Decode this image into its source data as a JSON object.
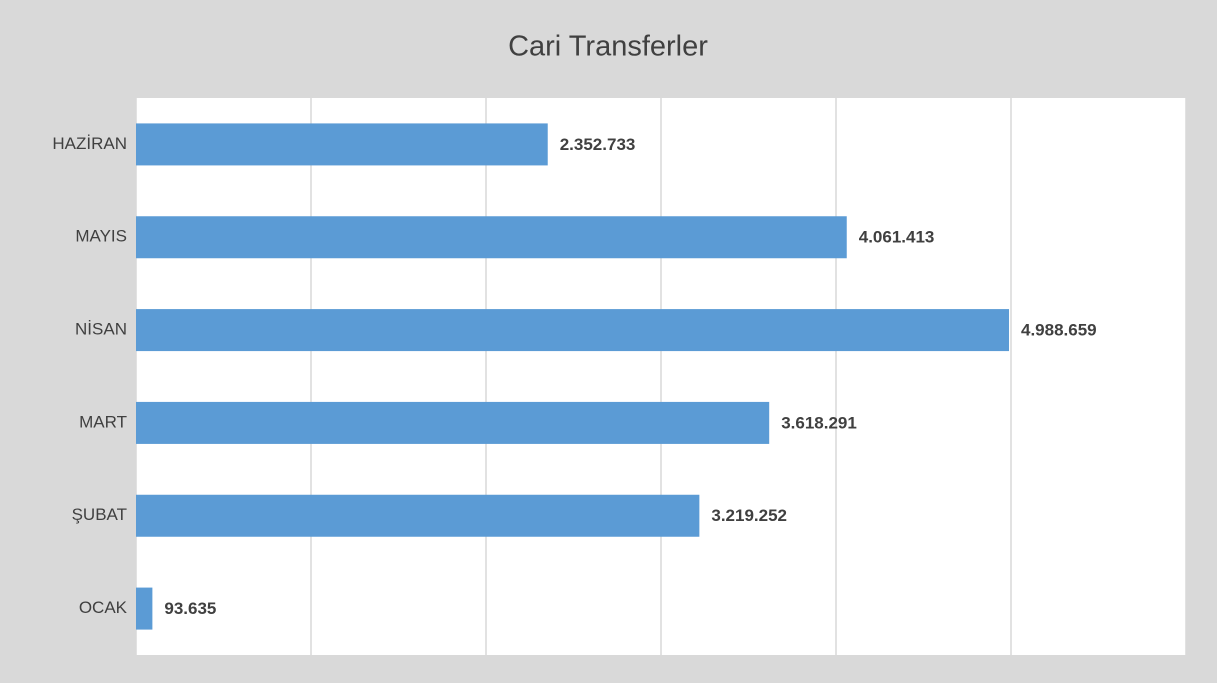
{
  "chart_data": {
    "type": "barh",
    "title": "Cari Transferler",
    "categories": [
      "HAZİRAN",
      "MAYIS",
      "NİSAN",
      "MART",
      "ŞUBAT",
      "OCAK"
    ],
    "values": [
      2352733,
      4061413,
      4988659,
      3618291,
      3219252,
      93635
    ],
    "value_labels": [
      "2.352.733",
      "4.061.413",
      "4.988.659",
      "3.618.291",
      "3.219.252",
      "93.635"
    ],
    "color": "#5b9bd5",
    "xlim": [
      0,
      6000000
    ],
    "xticks": [
      0,
      1000000,
      2000000,
      3000000,
      4000000,
      5000000,
      6000000
    ],
    "grid": true
  }
}
